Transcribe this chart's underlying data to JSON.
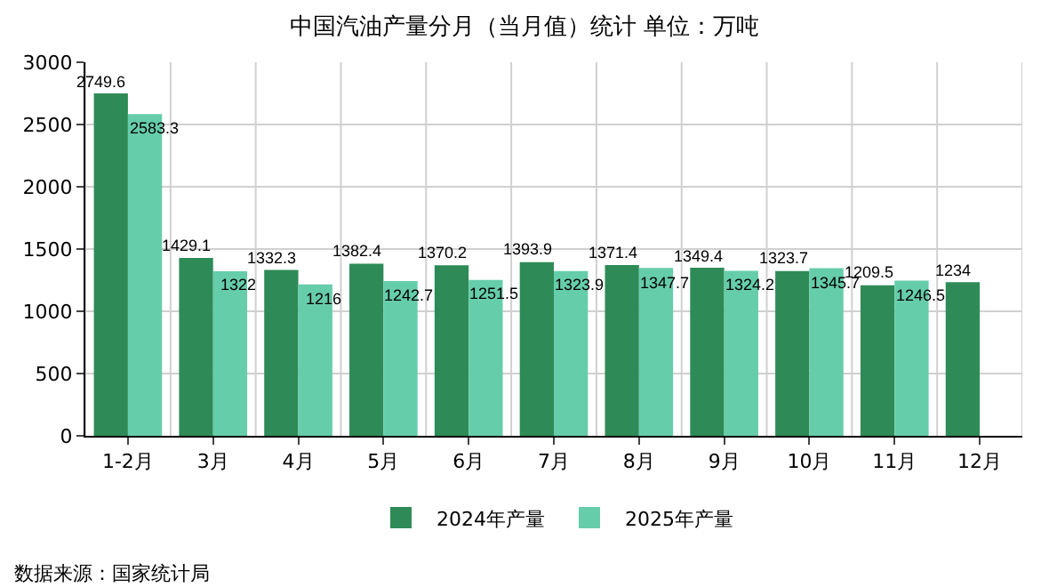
{
  "chart_data": {
    "type": "bar",
    "title": "中国汽油产量分月（当月值）统计 单位：万吨",
    "categories": [
      "1-2月",
      "3月",
      "4月",
      "5月",
      "6月",
      "7月",
      "8月",
      "9月",
      "10月",
      "11月",
      "12月"
    ],
    "series": [
      {
        "name": "2024年产量",
        "color": "#2e8b57",
        "values": [
          2749.6,
          1429.1,
          1332.3,
          1382.4,
          1370.2,
          1393.9,
          1371.4,
          1349.4,
          1323.7,
          1209.5,
          1234
        ]
      },
      {
        "name": "2025年产量",
        "color": "#66cdaa",
        "values": [
          2583.3,
          1322,
          1216,
          1242.7,
          1251.5,
          1323.9,
          1347.7,
          1324.2,
          1345.7,
          1246.5,
          null
        ]
      }
    ],
    "ylim": [
      0,
      3000
    ],
    "yticks": [
      0,
      500,
      1000,
      1500,
      2000,
      2500,
      3000
    ],
    "grid": true,
    "legend": "bottom",
    "data_labels": true,
    "annotations": [
      "数据来源：国家统计局"
    ]
  }
}
